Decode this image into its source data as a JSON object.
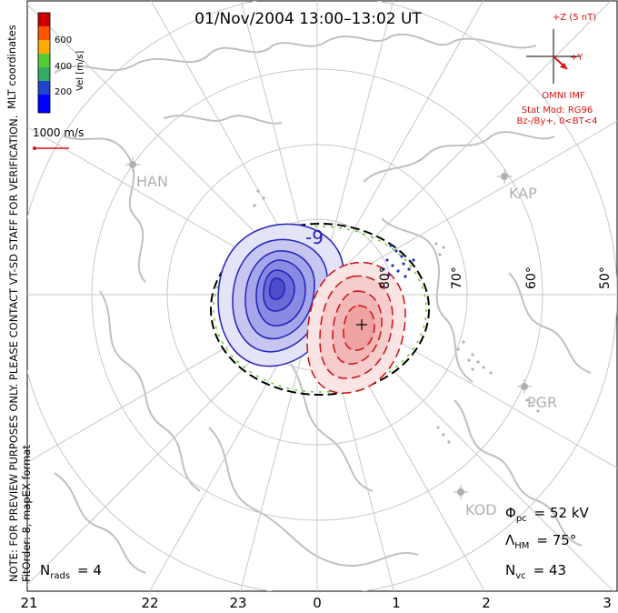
{
  "title": "01/Nov/2004 13:00–13:02 UT",
  "side_notes": {
    "preview": "NOTE: FOR PREVIEW PURPOSES ONLY. PLEASE CONTACT VT-SD STAFF FOR VERIFICATION.",
    "fit": "FitOrder: 8, mapEX format",
    "coords": "MLT coordinates"
  },
  "colorbar": {
    "label": "Vel [m/s]",
    "ticks": [
      "600",
      "400",
      "200"
    ],
    "colors": [
      "#cc0000",
      "#ff5500",
      "#ffaa00",
      "#55cc33",
      "#33aa66",
      "#2244cc",
      "#0000ff"
    ]
  },
  "vector_key": "1000 m/s",
  "imf": {
    "z_label": "+Z (5 nT)",
    "y_label": "+Y",
    "source": "OMNI IMF",
    "model": "Stat Mod: RG96",
    "condition": "Bz-/By+, 0<BT<4"
  },
  "stations": [
    {
      "code": "HAN"
    },
    {
      "code": "KAP"
    },
    {
      "code": "PGR"
    },
    {
      "code": "KOD"
    }
  ],
  "latitude_labels": [
    "80°",
    "70°",
    "60°",
    "50°"
  ],
  "mlt_labels": [
    "21",
    "22",
    "23",
    "0",
    "1",
    "2",
    "3"
  ],
  "contour_label": "-9",
  "stats": {
    "phi_label": "Φ",
    "phi_sub": "pc",
    "phi_value": "= 52 kV",
    "lambda_label": "Λ",
    "lambda_sub": "HM",
    "lambda_value": "= 75°",
    "nvc_label": "N",
    "nvc_sub": "vc",
    "nvc_value": "= 43",
    "nrads_label": "N",
    "nrads_sub": "rads",
    "nrads_value": "= 4"
  },
  "colors": {
    "grid": "#c8c8c8",
    "coast": "#c0c0c0",
    "negative": "#2222bb",
    "positive": "#cc1111",
    "imf": "#dd1111",
    "station": "#b0b0b0"
  }
}
